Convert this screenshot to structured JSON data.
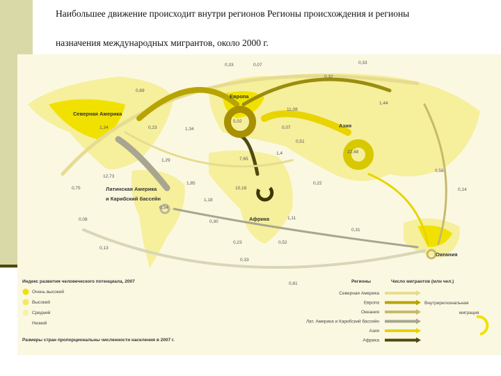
{
  "header": {
    "title_lines": [
      "Наибольшее движение происходит внутри регионов Регионы происхождения и регионы",
      "назначения международных мигрантов, около 2000 г."
    ]
  },
  "map": {
    "regions": [
      "Северная Америка",
      "Европа",
      "Азия",
      "Латинская Америка",
      "и Карибский бассейн",
      "Африка",
      "Океания"
    ],
    "flow_values": [
      "0,33",
      "0,07",
      "0,33",
      "0,32",
      "0,69",
      "11,08",
      "1,44",
      "5,02",
      "1,34",
      "0,23",
      "1,34",
      "0,07",
      "0,51",
      "1,4",
      "7,65",
      "1,29",
      "22,48",
      "0,58",
      "12,73",
      "0,75",
      "1,85",
      "10,18",
      "0,22",
      "0,14",
      "1,18",
      "0,34",
      "0,08",
      "0,30",
      "1,11",
      "0,31",
      "0,13",
      "0,23",
      "0,52",
      "0,33",
      "0,81"
    ]
  },
  "legend": {
    "hdi_title": "Индекс развития человеческого потенциала, 2007",
    "hdi_levels": [
      "Очень высокий",
      "Высокий",
      "Средний",
      "Низкий"
    ],
    "size_note": "Размеры стран пропорциональны численности населения в 2007 г.",
    "regions_title": "Регионы",
    "migrants_title": "Число мигрантов (млн чел.)",
    "regions": [
      "Северная Америка",
      "Европа",
      "Океания",
      "Лат. Америка и Карибский бассейн",
      "Азия",
      "Африка"
    ],
    "intra_lines": [
      "Внутрирегиональная",
      "миграция"
    ]
  }
}
